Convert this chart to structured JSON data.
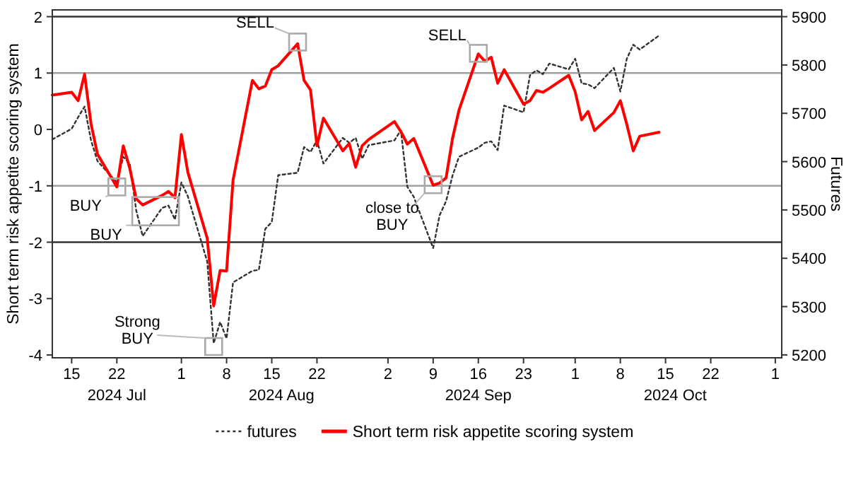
{
  "chart_data": {
    "type": "line",
    "ylabel": "Short term risk appetite scoring system",
    "y2label": "Futures",
    "x": [
      "2024-07-12",
      "2024-07-15",
      "2024-07-16",
      "2024-07-17",
      "2024-07-18",
      "2024-07-19",
      "2024-07-22",
      "2024-07-23",
      "2024-07-24",
      "2024-07-25",
      "2024-07-26",
      "2024-07-29",
      "2024-07-30",
      "2024-07-31",
      "2024-08-01",
      "2024-08-02",
      "2024-08-05",
      "2024-08-06",
      "2024-08-07",
      "2024-08-08",
      "2024-08-09",
      "2024-08-12",
      "2024-08-13",
      "2024-08-14",
      "2024-08-15",
      "2024-08-16",
      "2024-08-19",
      "2024-08-20",
      "2024-08-21",
      "2024-08-22",
      "2024-08-23",
      "2024-08-26",
      "2024-08-27",
      "2024-08-28",
      "2024-08-29",
      "2024-08-30",
      "2024-09-03",
      "2024-09-04",
      "2024-09-05",
      "2024-09-06",
      "2024-09-09",
      "2024-09-10",
      "2024-09-11",
      "2024-09-12",
      "2024-09-13",
      "2024-09-16",
      "2024-09-17",
      "2024-09-18",
      "2024-09-19",
      "2024-09-20",
      "2024-09-23",
      "2024-09-24",
      "2024-09-25",
      "2024-09-26",
      "2024-09-27",
      "2024-09-30",
      "2024-10-01",
      "2024-10-02",
      "2024-10-03",
      "2024-10-04",
      "2024-10-07",
      "2024-10-08",
      "2024-10-09",
      "2024-10-10",
      "2024-10-11",
      "2024-10-14"
    ],
    "series": [
      {
        "name": "futures",
        "color": "#333333",
        "axis": "y2",
        "line_style": "dotted",
        "values": [
          5646,
          5668,
          5692,
          5714,
          5644,
          5601,
          5557,
          5610,
          5596,
          5499,
          5446,
          5504,
          5509,
          5480,
          5557,
          5528,
          5393,
          5224,
          5268,
          5234,
          5350,
          5374,
          5376,
          5461,
          5475,
          5572,
          5577,
          5630,
          5620,
          5644,
          5596,
          5649,
          5639,
          5649,
          5606,
          5634,
          5644,
          5665,
          5548,
          5527,
          5421,
          5489,
          5518,
          5571,
          5610,
          5629,
          5639,
          5642,
          5624,
          5716,
          5702,
          5779,
          5789,
          5781,
          5803,
          5791,
          5813,
          5762,
          5760,
          5752,
          5794,
          5745,
          5813,
          5842,
          5832,
          5861
        ]
      },
      {
        "name": "Short term risk appetite scoring system",
        "color": "#ff0000",
        "line_style": "solid",
        "values": [
          0.61,
          0.66,
          0.51,
          0.98,
          0.1,
          -0.44,
          -1.02,
          -0.29,
          -0.69,
          -1.23,
          -1.34,
          -1.17,
          -1.1,
          -1.21,
          -0.09,
          -0.76,
          -1.93,
          -3.13,
          -2.5,
          -2.51,
          -0.9,
          0.87,
          0.72,
          0.77,
          1.06,
          1.13,
          1.52,
          0.87,
          0.7,
          -0.29,
          0.2,
          -0.38,
          -0.25,
          -0.67,
          -0.29,
          -0.18,
          0.14,
          -0.04,
          -0.26,
          -0.16,
          -0.99,
          -0.95,
          -0.86,
          -0.16,
          0.34,
          1.34,
          1.21,
          1.28,
          0.82,
          1.06,
          0.45,
          0.51,
          0.69,
          0.66,
          0.73,
          0.96,
          0.67,
          0.17,
          0.32,
          -0.02,
          0.3,
          0.51,
          0.09,
          -0.38,
          -0.12,
          -0.05
        ]
      }
    ],
    "xlim": [
      "2024-07-12",
      "2024-11-02"
    ],
    "xticks": [
      {
        "value": "2024-07-15",
        "label": "15"
      },
      {
        "value": "2024-07-22",
        "label": "22"
      },
      {
        "value": "2024-08-01",
        "label": "1"
      },
      {
        "value": "2024-08-08",
        "label": "8"
      },
      {
        "value": "2024-08-15",
        "label": "15"
      },
      {
        "value": "2024-08-22",
        "label": "22"
      },
      {
        "value": "2024-09-02",
        "label": "2"
      },
      {
        "value": "2024-09-09",
        "label": "9"
      },
      {
        "value": "2024-09-16",
        "label": "16"
      },
      {
        "value": "2024-09-23",
        "label": "23"
      },
      {
        "value": "2024-10-01",
        "label": "1"
      },
      {
        "value": "2024-10-08",
        "label": "8"
      },
      {
        "value": "2024-10-15",
        "label": "15"
      },
      {
        "value": "2024-10-22",
        "label": "22"
      },
      {
        "value": "2024-11-01",
        "label": "1"
      }
    ],
    "ylim": [
      -4.05,
      2.12
    ],
    "yticks": [
      -4,
      -3,
      -2,
      -1,
      0,
      1,
      2
    ],
    "y2lim": [
      5194,
      5914
    ],
    "y2ticks": [
      5200,
      5300,
      5400,
      5500,
      5600,
      5700,
      5800,
      5900
    ],
    "ref_lines": [
      {
        "axis": "y",
        "value": 2,
        "color": "#333333"
      },
      {
        "axis": "y",
        "value": 1,
        "color": "#a0a0a0"
      },
      {
        "axis": "y",
        "value": -1,
        "color": "#a0a0a0"
      },
      {
        "axis": "y",
        "value": -2,
        "color": "#333333"
      }
    ],
    "annotations": [
      "2024 Jul",
      "2024 Aug",
      "2024 Sep",
      "2024 Oct",
      {
        "text": "SELL",
        "x": "2024-08-19",
        "y": 1.55
      },
      {
        "text": "SELL",
        "x": "2024-09-16",
        "y": 1.35
      },
      {
        "text": "BUY",
        "x": "2024-07-22",
        "y": -1.02
      },
      {
        "text": "BUY",
        "x": "2024-07-28",
        "y": -1.45
      },
      {
        "text": "Strong BUY",
        "x": "2024-08-06",
        "y": -3.85
      },
      {
        "text": "close to BUY",
        "x": "2024-09-09",
        "y": -0.98
      }
    ],
    "legend": "bottom",
    "grid": false
  }
}
